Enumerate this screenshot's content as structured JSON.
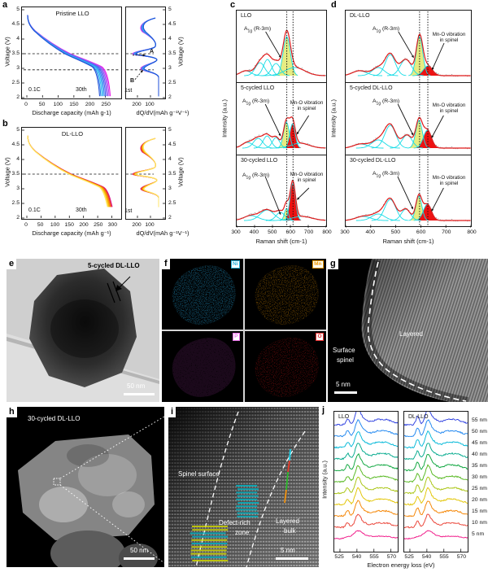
{
  "letters": {
    "a": "a",
    "b": "b",
    "c": "c",
    "d": "d",
    "e": "e",
    "f": "f",
    "g": "g",
    "h": "h",
    "i": "i",
    "j": "j"
  },
  "panel_a": {
    "title": "Pristine LLO",
    "rate": "0.1C",
    "cyc30": "30th",
    "cyc1": "1st",
    "ylabel_left": "Voltage (V)",
    "ylabel_right": "Voltage (V)",
    "xlabel": "Discharge capacity (mAh g-1)",
    "x2label": "dQ/dV(mAh g⁻¹V⁻¹)",
    "yticks": [
      "5",
      "4.5",
      "4",
      "3.5",
      "3",
      "2.5",
      "2"
    ],
    "xticks": [
      "0",
      "50",
      "100",
      "150",
      "200",
      "250"
    ],
    "x2ticks": [
      "200",
      "100"
    ],
    "annA": "A",
    "annB": "B"
  },
  "panel_b": {
    "title": "DL-LLO",
    "rate": "0.1C",
    "cyc30": "30th",
    "cyc1": "1st",
    "ylabel_left": "Voltage (V)",
    "ylabel_right": "Voltage (V)",
    "xlabel": "Discharge capacity (mAh g⁻¹)",
    "x2label": "dQ/dV(mAh g⁻¹V⁻¹)",
    "yticks": [
      "5",
      "4.5",
      "4",
      "3.5",
      "3",
      "2.5",
      "2"
    ],
    "xticks": [
      "0",
      "50",
      "100",
      "150",
      "200",
      "250",
      "300"
    ],
    "x2ticks": [
      "200",
      "100"
    ]
  },
  "panel_c": {
    "ylabel": "Intensity (a.u.)",
    "xlabel": "Raman shift (cm-1)",
    "xticks": [
      "300",
      "400",
      "500",
      "600",
      "700",
      "800"
    ],
    "a1g_main": "A",
    "a1g_sub": "1g",
    "a1g_rest": " (R-3m)",
    "mno1": "Mn-O vibration",
    "mno2": "in spinel",
    "sub": [
      {
        "label": "LLO"
      },
      {
        "label": "5-cycled LLO"
      },
      {
        "label": "30-cycled LLO"
      }
    ]
  },
  "panel_d": {
    "ylabel": "Intensity (a.u.)",
    "xlabel": "Raman shift (cm-1)",
    "xticks": [
      "300",
      "400",
      "500",
      "600",
      "700",
      "800"
    ],
    "a1g_main": "A",
    "a1g_sub": "1g",
    "a1g_rest": " (R-3m)",
    "mno1": "Mn-O vibration",
    "mno2": "in spinel",
    "sub": [
      {
        "label": "DL-LLO"
      },
      {
        "label": "5-cycled DL-LLO"
      },
      {
        "label": "30-cycled DL-LLO"
      }
    ]
  },
  "panel_e": {
    "label": "5-cycled DL-LLO",
    "scalebar": "50 nm"
  },
  "panel_f": {
    "elements": [
      {
        "symbol": "Ni",
        "color": "#29b4dc"
      },
      {
        "symbol": "Mn",
        "color": "#f29b00"
      },
      {
        "symbol": "P",
        "color": "#e873e8"
      },
      {
        "symbol": "O",
        "color": "#e83030"
      }
    ]
  },
  "panel_g": {
    "layered": "Layered",
    "surface1": "Surface",
    "surface2": "spinel",
    "scalebar": "5 nm"
  },
  "panel_h": {
    "label": "30-cycled DL-LLO",
    "scalebar": "50 nm"
  },
  "panel_i": {
    "spinel": "Spinel surface",
    "defect1": "Defect-rich",
    "defect2": "zone",
    "layered1": "Layered",
    "layered2": "bulk",
    "scalebar": "5 nm"
  },
  "panel_j": {
    "left_label": "LLO",
    "right_label": "DL-LLO",
    "ylabel": "Intensity (a.u.)",
    "xlabel": "Electron energy loss (eV)",
    "xticks": [
      "525",
      "540",
      "555",
      "570"
    ],
    "distances": [
      "55 nm",
      "50 nm",
      "45 nm",
      "40 nm",
      "35 nm",
      "30 nm",
      "25 nm",
      "20 nm",
      "15 nm",
      "10 nm",
      "5 nm"
    ]
  },
  "chart_data": [
    {
      "id": "a",
      "type": "line",
      "title": "Pristine LLO",
      "rate": "0.1C",
      "xlabel": "Discharge capacity (mAh g-1)",
      "x2label": "dQ/dV(mAh g⁻¹V⁻¹)",
      "ylabel": "Voltage (V)",
      "xlim": [
        0,
        280
      ],
      "ylim": [
        2,
        5
      ],
      "xticks": [
        0,
        50,
        100,
        150,
        200,
        250
      ],
      "x2ticks": [
        200,
        100
      ],
      "yticks": [
        5,
        4.5,
        4,
        3.5,
        3,
        2.5,
        2
      ],
      "dashed_voltages": [
        3.5,
        2.95
      ],
      "cycle_labels": [
        "1st",
        "30th"
      ],
      "capacity_mAh_g_first": 266,
      "capacity_mAh_g_30th": 232,
      "end_voltage": 2.05,
      "dqdv_peak_labels": [
        "A",
        "B"
      ],
      "colors": [
        "#e816e8",
        "#c04df2",
        "#9757f5",
        "#6f5ef2",
        "#4f6cf0",
        "#3b86f2",
        "#2fa6f2",
        "#3cc6f4",
        "#2f7ce8",
        "#1f4fd8"
      ]
    },
    {
      "id": "b",
      "type": "line",
      "title": "DL-LLO",
      "rate": "0.1C",
      "xlabel": "Discharge capacity (mAh g⁻¹)",
      "x2label": "dQ/dV(mAh g⁻¹V⁻¹)",
      "ylabel": "Voltage (V)",
      "xlim": [
        0,
        310
      ],
      "ylim": [
        2,
        5
      ],
      "xticks": [
        0,
        50,
        100,
        150,
        200,
        250,
        300
      ],
      "x2ticks": [
        200,
        100
      ],
      "yticks": [
        5,
        4.5,
        4,
        3.5,
        3,
        2.5,
        2
      ],
      "dashed_voltages": [
        3.5
      ],
      "cycle_labels": [
        "1st",
        "30th"
      ],
      "capacity_mAh_g_first": 302,
      "capacity_mAh_g_30th": 285,
      "end_voltage": 2.38,
      "colors": [
        "#da1490",
        "#ee2e2e",
        "#f2601a",
        "#f69200",
        "#f8b400",
        "#fad42a",
        "#ffe668"
      ]
    },
    {
      "id": "c",
      "type": "line",
      "xlabel": "Raman shift (cm-1)",
      "ylabel": "Intensity (a.u.)",
      "xlim": [
        300,
        800
      ],
      "xticks": [
        300,
        400,
        500,
        600,
        700,
        800
      ],
      "dotted_lines": [
        580,
        615
      ],
      "panels": [
        {
          "label": "LLO",
          "components": [
            [
              350,
              6,
              30
            ],
            [
              430,
              16,
              26
            ],
            [
              472,
              20,
              22
            ],
            [
              520,
              15,
              24
            ],
            [
              580,
              48,
              20,
              "yellow"
            ],
            [
              625,
              10,
              55
            ]
          ]
        },
        {
          "label": "5-cycled LLO",
          "components": [
            [
              360,
              7,
              30
            ],
            [
              420,
              12,
              26
            ],
            [
              470,
              15,
              22
            ],
            [
              520,
              13,
              20
            ],
            [
              578,
              32,
              16,
              "yellow"
            ],
            [
              612,
              30,
              15,
              "red"
            ],
            [
              655,
              6,
              50
            ]
          ]
        },
        {
          "label": "30-cycled LLO",
          "components": [
            [
              380,
              6,
              40
            ],
            [
              470,
              13,
              38
            ],
            [
              545,
              10,
              24
            ],
            [
              578,
              15,
              11,
              "yellow"
            ],
            [
              613,
              46,
              15,
              "red"
            ],
            [
              665,
              5,
              55
            ]
          ]
        }
      ]
    },
    {
      "id": "d",
      "type": "line",
      "xlabel": "Raman shift (cm-1)",
      "ylabel": "Intensity (a.u.)",
      "xlim": [
        300,
        800
      ],
      "xticks": [
        300,
        400,
        500,
        600,
        700,
        800
      ],
      "dotted_lines": [
        595,
        628
      ],
      "panels": [
        {
          "label": "DL-LLO",
          "components": [
            [
              355,
              6,
              28
            ],
            [
              430,
              10,
              24
            ],
            [
              478,
              26,
              20
            ],
            [
              540,
              20,
              22
            ],
            [
              595,
              48,
              13,
              "yellow"
            ],
            [
              628,
              12,
              18,
              "red"
            ]
          ]
        },
        {
          "label": "5-cycled DL-LLO",
          "components": [
            [
              360,
              5,
              28
            ],
            [
              430,
              10,
              26
            ],
            [
              478,
              28,
              22
            ],
            [
              545,
              16,
              20
            ],
            [
              593,
              34,
              13,
              "yellow"
            ],
            [
              626,
              22,
              16,
              "red"
            ]
          ]
        },
        {
          "label": "30-cycled DL-LLO",
          "components": [
            [
              370,
              5,
              30
            ],
            [
              430,
              8,
              26
            ],
            [
              478,
              26,
              22
            ],
            [
              540,
              14,
              18
            ],
            [
              592,
              30,
              12,
              "yellow"
            ],
            [
              626,
              20,
              16,
              "red"
            ]
          ]
        }
      ]
    },
    {
      "id": "j",
      "type": "line",
      "groups": [
        "LLO",
        "DL-LLO"
      ],
      "xlabel": "Electron energy loss (eV)",
      "ylabel": "Intensity (a.u.)",
      "xlim": [
        520,
        576
      ],
      "xticks": [
        525,
        540,
        555,
        570
      ],
      "distances_nm": [
        55,
        50,
        45,
        40,
        35,
        30,
        25,
        20,
        15,
        10,
        5
      ],
      "features_eV": {
        "pre_edge": 532,
        "main_peak": 541,
        "broad_hump": 560
      },
      "colors": [
        "#2d3fe0",
        "#1e86f0",
        "#02b8d8",
        "#00a98c",
        "#0ba53c",
        "#53b71c",
        "#a8c40e",
        "#e2c400",
        "#f58400",
        "#ea4034",
        "#f01687"
      ]
    }
  ]
}
